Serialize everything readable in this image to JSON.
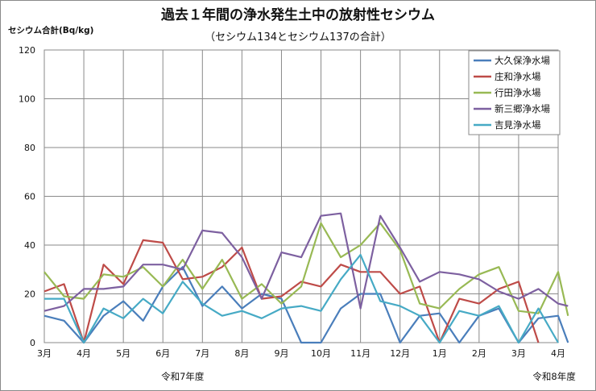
{
  "chart_data": {
    "type": "line",
    "title": "過去１年間の浄水発生土中の放射性セシウム",
    "subtitle": "（セシウム134とセシウム137の合計）",
    "ylabel": "セシウム合計(Bq/kg)",
    "xlabel": "",
    "ylim": [
      0,
      120
    ],
    "yticks": [
      0,
      20,
      40,
      60,
      80,
      100,
      120
    ],
    "grid": true,
    "legend_position": "top-right",
    "x_start": 0,
    "x_end": 26,
    "month_ticks": [
      {
        "x": 0,
        "label": "3月"
      },
      {
        "x": 2,
        "label": "4月"
      },
      {
        "x": 4,
        "label": "5月"
      },
      {
        "x": 6,
        "label": "6月"
      },
      {
        "x": 8,
        "label": "7月"
      },
      {
        "x": 10,
        "label": "8月"
      },
      {
        "x": 12,
        "label": "9月"
      },
      {
        "x": 14,
        "label": "10月"
      },
      {
        "x": 16,
        "label": "11月"
      },
      {
        "x": 18,
        "label": "12月"
      },
      {
        "x": 20,
        "label": "1月"
      },
      {
        "x": 22,
        "label": "2月"
      },
      {
        "x": 24,
        "label": "3月"
      },
      {
        "x": 26,
        "label": "4月"
      }
    ],
    "year_labels": [
      {
        "x": 7,
        "label": "令和7年度"
      },
      {
        "x": 25.8,
        "label": "令和8年度"
      }
    ],
    "series": [
      {
        "name": "大久保浄水場",
        "color": "#4a7ebb",
        "points": [
          [
            0,
            11
          ],
          [
            1,
            9
          ],
          [
            2,
            0
          ],
          [
            3,
            11
          ],
          [
            4,
            17
          ],
          [
            5,
            9
          ],
          [
            6,
            23
          ],
          [
            7,
            31
          ],
          [
            8,
            15
          ],
          [
            9,
            23
          ],
          [
            10,
            14
          ],
          [
            11,
            20
          ],
          [
            12,
            18
          ],
          [
            13,
            0
          ],
          [
            14,
            0
          ],
          [
            15,
            14
          ],
          [
            16,
            20
          ],
          [
            17,
            20
          ],
          [
            18,
            0
          ],
          [
            19,
            11
          ],
          [
            20,
            12
          ],
          [
            21,
            0
          ],
          [
            22,
            11
          ],
          [
            23,
            14
          ],
          [
            24,
            0
          ],
          [
            25,
            10
          ],
          [
            26,
            11
          ],
          [
            26.5,
            0
          ]
        ]
      },
      {
        "name": "庄和浄水場",
        "color": "#be4b48",
        "points": [
          [
            0,
            21
          ],
          [
            1,
            24
          ],
          [
            2,
            0
          ],
          [
            3,
            32
          ],
          [
            4,
            24
          ],
          [
            5,
            42
          ],
          [
            6,
            41
          ],
          [
            7,
            26
          ],
          [
            8,
            27
          ],
          [
            9,
            31
          ],
          [
            10,
            39
          ],
          [
            11,
            18
          ],
          [
            12,
            19
          ],
          [
            13,
            25
          ],
          [
            14,
            23
          ],
          [
            15,
            32
          ],
          [
            16,
            29
          ],
          [
            17,
            29
          ],
          [
            18,
            20
          ],
          [
            19,
            23
          ],
          [
            20,
            0
          ],
          [
            21,
            18
          ],
          [
            22,
            16
          ],
          [
            23,
            22
          ],
          [
            24,
            25
          ],
          [
            25,
            0
          ]
        ]
      },
      {
        "name": "行田浄水場",
        "color": "#98b954",
        "points": [
          [
            0,
            29
          ],
          [
            1,
            19
          ],
          [
            2,
            18
          ],
          [
            3,
            28
          ],
          [
            4,
            27
          ],
          [
            5,
            31
          ],
          [
            6,
            23
          ],
          [
            7,
            34
          ],
          [
            8,
            22
          ],
          [
            9,
            34
          ],
          [
            10,
            18
          ],
          [
            11,
            24
          ],
          [
            12,
            16
          ],
          [
            13,
            23
          ],
          [
            14,
            49
          ],
          [
            15,
            35
          ],
          [
            16,
            40
          ],
          [
            17,
            49
          ],
          [
            18,
            38
          ],
          [
            19,
            16
          ],
          [
            20,
            14
          ],
          [
            21,
            22
          ],
          [
            22,
            28
          ],
          [
            23,
            31
          ],
          [
            24,
            13
          ],
          [
            25,
            12
          ],
          [
            26,
            29
          ],
          [
            26.5,
            11
          ]
        ]
      },
      {
        "name": "新三郷浄水場",
        "color": "#7d60a0",
        "points": [
          [
            0,
            13
          ],
          [
            1,
            15
          ],
          [
            2,
            22
          ],
          [
            3,
            22
          ],
          [
            4,
            23
          ],
          [
            5,
            32
          ],
          [
            6,
            32
          ],
          [
            7,
            30
          ],
          [
            8,
            46
          ],
          [
            9,
            45
          ],
          [
            10,
            35
          ],
          [
            11,
            18
          ],
          [
            12,
            37
          ],
          [
            13,
            35
          ],
          [
            14,
            52
          ],
          [
            15,
            53
          ],
          [
            16,
            14
          ],
          [
            17,
            52
          ],
          [
            18,
            39
          ],
          [
            19,
            25
          ],
          [
            20,
            29
          ],
          [
            21,
            28
          ],
          [
            22,
            26
          ],
          [
            23,
            21
          ],
          [
            24,
            18
          ],
          [
            25,
            22
          ],
          [
            26,
            16
          ],
          [
            26.5,
            15
          ]
        ]
      },
      {
        "name": "吉見浄水場",
        "color": "#46aac5",
        "points": [
          [
            0,
            18
          ],
          [
            1,
            18
          ],
          [
            2,
            0
          ],
          [
            3,
            14
          ],
          [
            4,
            10
          ],
          [
            5,
            18
          ],
          [
            6,
            12
          ],
          [
            7,
            25
          ],
          [
            8,
            16
          ],
          [
            9,
            11
          ],
          [
            10,
            13
          ],
          [
            11,
            10
          ],
          [
            12,
            14
          ],
          [
            13,
            15
          ],
          [
            14,
            13
          ],
          [
            15,
            26
          ],
          [
            16,
            36
          ],
          [
            17,
            17
          ],
          [
            18,
            15
          ],
          [
            19,
            11
          ],
          [
            20,
            0
          ],
          [
            21,
            13
          ],
          [
            22,
            11
          ],
          [
            23,
            15
          ],
          [
            24,
            0
          ],
          [
            25,
            14
          ],
          [
            26,
            0
          ]
        ]
      }
    ]
  }
}
